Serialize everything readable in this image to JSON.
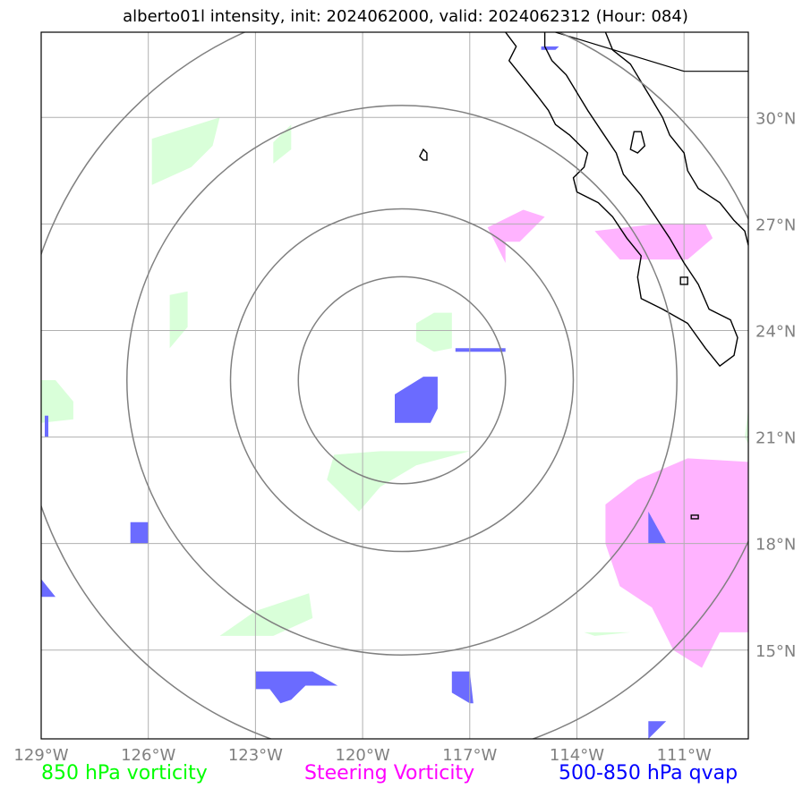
{
  "title": "alberto01l intensity, init: 2024062000, valid: 2024062312 (Hour: 084)",
  "map": {
    "lon_range": [
      -129.0,
      -109.2
    ],
    "lat_range": [
      12.5,
      32.4
    ],
    "lon_ticks": [
      {
        "lon": -129,
        "label": "129°W"
      },
      {
        "lon": -126,
        "label": "126°W"
      },
      {
        "lon": -123,
        "label": "123°W"
      },
      {
        "lon": -120,
        "label": "120°W"
      },
      {
        "lon": -117,
        "label": "117°W"
      },
      {
        "lon": -114,
        "label": "114°W"
      },
      {
        "lon": -111,
        "label": "111°W"
      }
    ],
    "lat_ticks": [
      {
        "lat": 30,
        "label": "30°N"
      },
      {
        "lat": 27,
        "label": "27°N"
      },
      {
        "lat": 24,
        "label": "24°N"
      },
      {
        "lat": 21,
        "label": "21°N"
      },
      {
        "lat": 18,
        "label": "18°N"
      },
      {
        "lat": 15,
        "label": "15°N"
      }
    ],
    "storm_center": {
      "lon": -118.9,
      "lat": 22.6
    },
    "range_rings_deg": [
      2.9,
      4.8,
      7.7,
      10.7
    ],
    "colors": {
      "frame": "#000000",
      "grid": "#b0b0b0",
      "rings": "#808080",
      "coast": "#000000",
      "vort850": "#d9ffd9",
      "steering": "#ffb3ff",
      "qvap": "#6b6bff"
    },
    "coastline": [
      [
        [
          -116.0,
          32.4
        ],
        [
          -115.7,
          32.0
        ],
        [
          -115.9,
          31.6
        ],
        [
          -115.5,
          31.1
        ],
        [
          -115.1,
          30.6
        ],
        [
          -114.8,
          30.2
        ],
        [
          -114.6,
          29.8
        ],
        [
          -114.2,
          29.5
        ],
        [
          -113.7,
          29.0
        ],
        [
          -113.8,
          28.6
        ],
        [
          -114.1,
          28.3
        ],
        [
          -114.0,
          27.9
        ],
        [
          -113.4,
          27.6
        ],
        [
          -113.0,
          27.2
        ],
        [
          -112.6,
          26.6
        ],
        [
          -112.2,
          26.1
        ],
        [
          -112.3,
          25.5
        ],
        [
          -112.2,
          24.9
        ],
        [
          -111.6,
          24.6
        ],
        [
          -110.9,
          24.2
        ],
        [
          -110.4,
          23.5
        ],
        [
          -110.0,
          23.0
        ],
        [
          -109.6,
          23.3
        ],
        [
          -109.5,
          23.8
        ],
        [
          -109.7,
          24.3
        ],
        [
          -110.3,
          24.6
        ],
        [
          -110.6,
          25.3
        ],
        [
          -111.0,
          25.9
        ],
        [
          -111.4,
          26.6
        ],
        [
          -111.8,
          27.2
        ],
        [
          -112.2,
          27.8
        ],
        [
          -112.7,
          28.4
        ],
        [
          -112.9,
          29.0
        ],
        [
          -113.3,
          29.6
        ],
        [
          -113.7,
          30.2
        ],
        [
          -114.0,
          30.7
        ],
        [
          -114.3,
          31.2
        ],
        [
          -114.7,
          31.6
        ],
        [
          -114.9,
          32.0
        ],
        [
          -114.9,
          32.4
        ]
      ],
      [
        [
          -113.2,
          32.4
        ],
        [
          -113.0,
          31.9
        ],
        [
          -112.5,
          31.5
        ],
        [
          -112.2,
          31.0
        ],
        [
          -111.9,
          30.5
        ],
        [
          -111.6,
          30.0
        ],
        [
          -111.4,
          29.5
        ],
        [
          -111.0,
          29.0
        ],
        [
          -110.9,
          28.5
        ],
        [
          -110.6,
          28.0
        ],
        [
          -110.0,
          27.6
        ],
        [
          -109.6,
          27.1
        ],
        [
          -109.3,
          26.8
        ],
        [
          -109.2,
          26.4
        ]
      ]
    ],
    "islands": [
      [
        [
          -118.3,
          29.1
        ],
        [
          -118.2,
          29.0
        ],
        [
          -118.2,
          28.8
        ],
        [
          -118.3,
          28.8
        ],
        [
          -118.4,
          28.9
        ],
        [
          -118.3,
          29.1
        ]
      ],
      [
        [
          -112.4,
          29.6
        ],
        [
          -112.2,
          29.6
        ],
        [
          -112.1,
          29.2
        ],
        [
          -112.3,
          29.0
        ],
        [
          -112.5,
          29.1
        ],
        [
          -112.4,
          29.6
        ]
      ],
      [
        [
          -111.1,
          25.5
        ],
        [
          -110.9,
          25.5
        ],
        [
          -110.9,
          25.3
        ],
        [
          -111.1,
          25.3
        ],
        [
          -111.1,
          25.5
        ]
      ],
      [
        [
          -110.8,
          18.8
        ],
        [
          -110.6,
          18.8
        ],
        [
          -110.6,
          18.7
        ],
        [
          -110.8,
          18.7
        ],
        [
          -110.8,
          18.8
        ]
      ]
    ],
    "border": [
      [
        -114.6,
        32.4
      ],
      [
        -111.0,
        31.3
      ],
      [
        -109.2,
        31.3
      ]
    ],
    "vorticity_850": [
      [
        [
          -125.9,
          29.4
        ],
        [
          -124.0,
          30.0
        ],
        [
          -124.2,
          29.2
        ],
        [
          -124.8,
          28.6
        ],
        [
          -125.9,
          28.1
        ]
      ],
      [
        [
          -122.5,
          29.3
        ],
        [
          -122.0,
          29.8
        ],
        [
          -122.0,
          29.1
        ],
        [
          -122.5,
          28.7
        ]
      ],
      [
        [
          -125.4,
          25.0
        ],
        [
          -124.9,
          25.1
        ],
        [
          -124.9,
          24.1
        ],
        [
          -125.4,
          23.5
        ]
      ],
      [
        [
          -118.5,
          24.2
        ],
        [
          -118.0,
          24.5
        ],
        [
          -117.5,
          24.5
        ],
        [
          -117.5,
          23.5
        ],
        [
          -118.0,
          23.4
        ],
        [
          -118.5,
          23.7
        ]
      ],
      [
        [
          -129.0,
          22.6
        ],
        [
          -128.6,
          22.6
        ],
        [
          -128.1,
          22.0
        ],
        [
          -128.1,
          21.5
        ],
        [
          -129.0,
          21.4
        ]
      ],
      [
        [
          -120.8,
          20.5
        ],
        [
          -119.5,
          20.6
        ],
        [
          -117.0,
          20.6
        ],
        [
          -118.5,
          20.2
        ],
        [
          -119.5,
          19.6
        ],
        [
          -120.1,
          18.9
        ],
        [
          -121.0,
          19.8
        ]
      ],
      [
        [
          -123.0,
          16.1
        ],
        [
          -121.5,
          16.6
        ],
        [
          -121.4,
          15.9
        ],
        [
          -122.5,
          15.4
        ],
        [
          -124.0,
          15.4
        ]
      ],
      [
        [
          -113.8,
          15.5
        ],
        [
          -112.5,
          15.5
        ],
        [
          -113.5,
          15.4
        ]
      ],
      [
        [
          -109.2,
          21.8
        ],
        [
          -109.3,
          21.0
        ],
        [
          -109.2,
          20.8
        ]
      ]
    ],
    "steering_vorticity": [
      [
        [
          -116.5,
          26.9
        ],
        [
          -115.5,
          27.4
        ],
        [
          -114.9,
          27.2
        ],
        [
          -115.6,
          26.5
        ],
        [
          -116.0,
          26.5
        ],
        [
          -116.0,
          25.9
        ]
      ],
      [
        [
          -113.5,
          26.8
        ],
        [
          -111.8,
          27.0
        ],
        [
          -110.4,
          27.0
        ],
        [
          -110.2,
          26.6
        ],
        [
          -110.9,
          26.0
        ],
        [
          -112.8,
          26.0
        ]
      ],
      [
        [
          -110.9,
          20.4
        ],
        [
          -109.2,
          20.3
        ],
        [
          -109.2,
          15.5
        ],
        [
          -110.0,
          15.5
        ],
        [
          -110.5,
          14.5
        ],
        [
          -111.3,
          15.0
        ],
        [
          -111.9,
          16.2
        ],
        [
          -112.8,
          16.8
        ],
        [
          -113.2,
          18.0
        ],
        [
          -113.2,
          19.1
        ],
        [
          -112.3,
          19.8
        ]
      ]
    ],
    "qvap": [
      [
        [
          -119.1,
          22.2
        ],
        [
          -118.3,
          22.7
        ],
        [
          -117.9,
          22.7
        ],
        [
          -117.9,
          21.8
        ],
        [
          -118.1,
          21.4
        ],
        [
          -119.1,
          21.4
        ]
      ],
      [
        [
          -117.4,
          23.5
        ],
        [
          -116.0,
          23.5
        ],
        [
          -116.0,
          23.4
        ],
        [
          -117.4,
          23.4
        ]
      ],
      [
        [
          -126.5,
          18.6
        ],
        [
          -126.0,
          18.6
        ],
        [
          -126.0,
          18.0
        ],
        [
          -126.5,
          18.0
        ]
      ],
      [
        [
          -129.0,
          17.0
        ],
        [
          -128.6,
          16.5
        ],
        [
          -129.0,
          16.5
        ]
      ],
      [
        [
          -128.9,
          21.6
        ],
        [
          -128.8,
          21.6
        ],
        [
          -128.8,
          21.0
        ],
        [
          -128.9,
          21.0
        ]
      ],
      [
        [
          -123.0,
          14.4
        ],
        [
          -121.4,
          14.4
        ],
        [
          -120.7,
          14.0
        ],
        [
          -121.6,
          14.0
        ],
        [
          -122.0,
          13.6
        ],
        [
          -122.3,
          13.5
        ],
        [
          -122.6,
          13.9
        ],
        [
          -123.0,
          13.9
        ]
      ],
      [
        [
          -117.5,
          14.4
        ],
        [
          -117.0,
          14.4
        ],
        [
          -116.9,
          13.5
        ],
        [
          -117.0,
          13.5
        ],
        [
          -117.5,
          13.8
        ]
      ],
      [
        [
          -112.0,
          18.9
        ],
        [
          -111.5,
          18.0
        ],
        [
          -112.0,
          18.0
        ]
      ],
      [
        [
          -115.0,
          32.0
        ],
        [
          -114.5,
          32.0
        ],
        [
          -114.6,
          31.9
        ],
        [
          -115.0,
          31.9
        ]
      ],
      [
        [
          -112.0,
          13.0
        ],
        [
          -111.5,
          13.0
        ],
        [
          -112.0,
          12.5
        ]
      ]
    ]
  },
  "legend": {
    "vort850_label": "850 hPa vorticity",
    "steering_label": "Steering Vorticity",
    "qvap_label": "500-850 hPa qvap",
    "vort850_color": "#00ff00",
    "steering_color": "#ff00ff",
    "qvap_color": "#0000ff"
  }
}
